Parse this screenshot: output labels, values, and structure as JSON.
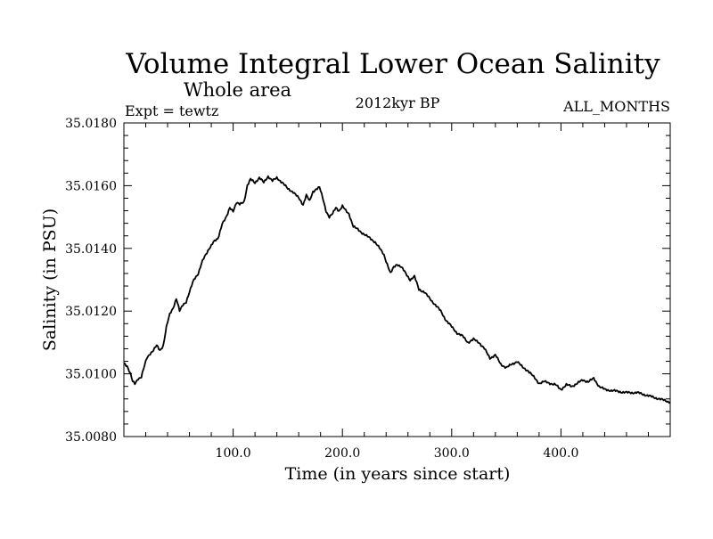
{
  "header": {
    "title": "Volume Integral Lower Ocean Salinity",
    "subtitle": "Whole area",
    "expt": "Expt = tewtz",
    "period": "2012kyr BP",
    "months": "ALL_MONTHS"
  },
  "chart_data": {
    "type": "line",
    "title": "Volume Integral Lower Ocean Salinity",
    "subtitle": "Whole area",
    "xlabel": "Time (in years since start)",
    "ylabel": "Salinity (in PSU)",
    "xlim": [
      0,
      500
    ],
    "ylim": [
      35.008,
      35.018
    ],
    "x_ticks": [
      100,
      200,
      300,
      400
    ],
    "x_tick_labels": [
      "100.0",
      "200.0",
      "300.0",
      "400.0"
    ],
    "y_ticks": [
      35.008,
      35.01,
      35.012,
      35.014,
      35.016,
      35.018
    ],
    "y_tick_labels": [
      "35.0080",
      "35.0100",
      "35.0120",
      "35.0140",
      "35.0160",
      "35.0180"
    ],
    "grid": false,
    "series": [
      {
        "name": "Salinity",
        "color": "#000000",
        "x": [
          0,
          3,
          6,
          8,
          10,
          13,
          16,
          18,
          21,
          24,
          27,
          30,
          33,
          36,
          39,
          42,
          45,
          48,
          51,
          54,
          57,
          60,
          64,
          68,
          72,
          75,
          78,
          82,
          86,
          90,
          94,
          97,
          100,
          103,
          106,
          110,
          113,
          116,
          120,
          124,
          128,
          132,
          136,
          140,
          145,
          150,
          155,
          160,
          164,
          167,
          170,
          173,
          176,
          179,
          182,
          185,
          188,
          191,
          194,
          197,
          200,
          203,
          206,
          210,
          214,
          218,
          222,
          226,
          230,
          234,
          238,
          241,
          244,
          247,
          250,
          254,
          258,
          262,
          266,
          270,
          275,
          280,
          285,
          290,
          295,
          300,
          305,
          310,
          315,
          320,
          325,
          330,
          335,
          340,
          345,
          350,
          355,
          360,
          365,
          370,
          375,
          380,
          385,
          390,
          395,
          400,
          405,
          410,
          415,
          420,
          425,
          430,
          435,
          440,
          450,
          460,
          470,
          480,
          490,
          500
        ],
        "values": [
          35.01035,
          35.01025,
          35.01,
          35.00975,
          35.00968,
          35.00985,
          35.0099,
          35.01015,
          35.0105,
          35.01065,
          35.01075,
          35.0109,
          35.01075,
          35.0109,
          35.0115,
          35.0119,
          35.0121,
          35.0124,
          35.012,
          35.0122,
          35.0123,
          35.0126,
          35.013,
          35.0132,
          35.0136,
          35.0138,
          35.014,
          35.0142,
          35.0143,
          35.0148,
          35.015,
          35.0153,
          35.0152,
          35.01545,
          35.0154,
          35.0155,
          35.016,
          35.0162,
          35.0161,
          35.01625,
          35.0161,
          35.0163,
          35.01615,
          35.01625,
          35.0161,
          35.0159,
          35.0158,
          35.0156,
          35.0154,
          35.0157,
          35.0155,
          35.0158,
          35.0159,
          35.01595,
          35.0156,
          35.0152,
          35.015,
          35.0151,
          35.0153,
          35.0152,
          35.01535,
          35.0152,
          35.0151,
          35.0147,
          35.0146,
          35.0145,
          35.0144,
          35.0143,
          35.0142,
          35.014,
          35.0138,
          35.0135,
          35.0132,
          35.0134,
          35.0135,
          35.0134,
          35.0132,
          35.013,
          35.0131,
          35.0127,
          35.0126,
          35.0124,
          35.0122,
          35.012,
          35.0117,
          35.0115,
          35.0113,
          35.0112,
          35.011,
          35.0111,
          35.011,
          35.0108,
          35.0105,
          35.0106,
          35.0103,
          35.0102,
          35.0103,
          35.0104,
          35.0102,
          35.0101,
          35.0099,
          35.0097,
          35.00975,
          35.0097,
          35.00965,
          35.0095,
          35.00965,
          35.0096,
          35.0097,
          35.0098,
          35.00975,
          35.00985,
          35.0096,
          35.0095,
          35.00945,
          35.0094,
          35.0094,
          35.0093,
          35.0092,
          35.0091
        ]
      }
    ]
  }
}
